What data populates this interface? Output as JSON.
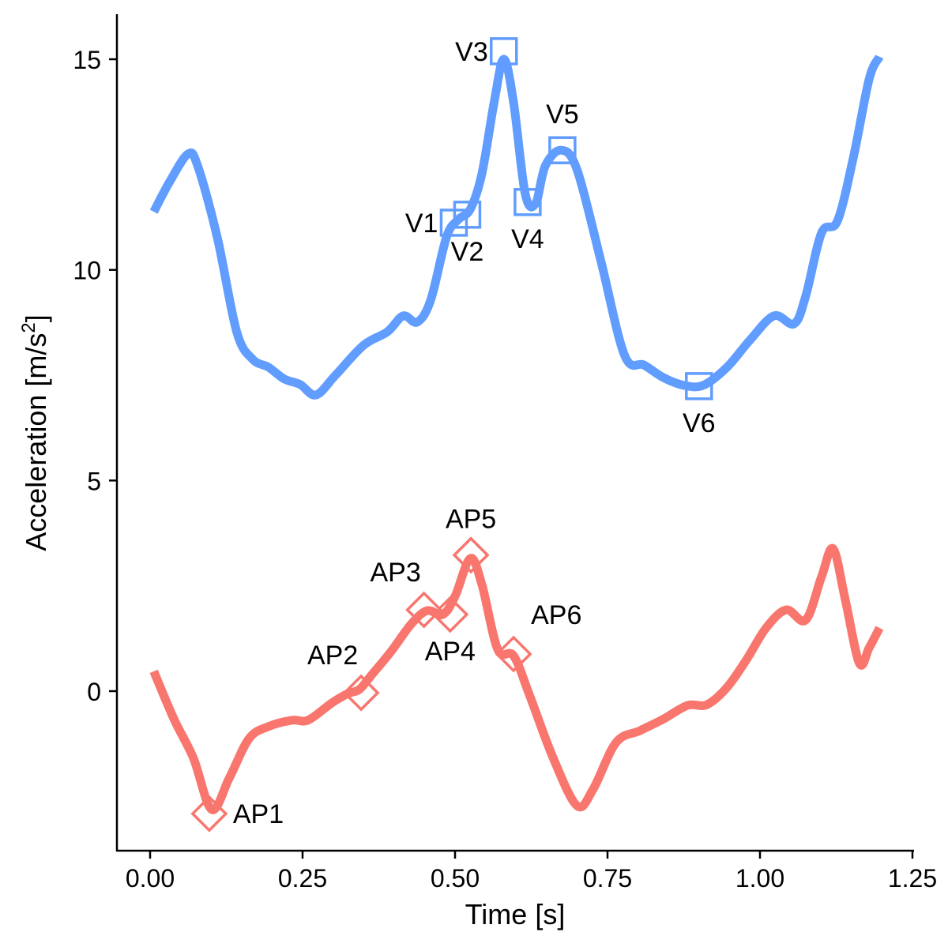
{
  "chart_data": {
    "type": "line",
    "title": "",
    "xlabel": "Time [s]",
    "ylabel": "Acceleration [m/s",
    "ylabel_superscript": "2",
    "ylabel_suffix": "]",
    "xlim": [
      -0.055,
      1.255
    ],
    "ylim": [
      -3.8,
      16.1
    ],
    "xticks": [
      0.0,
      0.25,
      0.5,
      0.75,
      1.0,
      1.25
    ],
    "xtick_labels": [
      "0.00",
      "0.25",
      "0.50",
      "0.75",
      "1.00",
      "1.25"
    ],
    "yticks": [
      0,
      5,
      10,
      15
    ],
    "ytick_labels": [
      "0",
      "5",
      "10",
      "15"
    ],
    "grid": false,
    "series": [
      {
        "name": "V",
        "color": "#619CFF",
        "marker": "square",
        "x": [
          0.006,
          0.032,
          0.062,
          0.078,
          0.11,
          0.142,
          0.168,
          0.194,
          0.22,
          0.246,
          0.272,
          0.304,
          0.35,
          0.389,
          0.415,
          0.438,
          0.46,
          0.486,
          0.505,
          0.525,
          0.544,
          0.564,
          0.58,
          0.596,
          0.615,
          0.632,
          0.648,
          0.674,
          0.7,
          0.739,
          0.778,
          0.81,
          0.842,
          0.875,
          0.907,
          0.946,
          0.984,
          1.023,
          1.056,
          1.075,
          1.101,
          1.127,
          1.153,
          1.179,
          1.196
        ],
        "y": [
          11.38,
          12.09,
          12.75,
          12.47,
          10.78,
          8.53,
          7.88,
          7.69,
          7.41,
          7.28,
          7.03,
          7.5,
          8.21,
          8.53,
          8.91,
          8.76,
          9.28,
          10.78,
          11.19,
          11.44,
          12.28,
          13.97,
          15.0,
          13.97,
          11.81,
          11.57,
          12.47,
          12.84,
          12.38,
          10.22,
          7.97,
          7.74,
          7.44,
          7.26,
          7.26,
          7.69,
          8.34,
          8.91,
          8.72,
          9.38,
          10.88,
          11.16,
          12.66,
          14.53,
          15.06
        ],
        "points": [
          {
            "label": "V1",
            "x": 0.498,
            "y": 11.12,
            "pos": "left"
          },
          {
            "label": "V2",
            "x": 0.52,
            "y": 11.31,
            "pos": "below"
          },
          {
            "label": "V3",
            "x": 0.58,
            "y": 15.19,
            "pos": "left"
          },
          {
            "label": "V4",
            "x": 0.619,
            "y": 11.61,
            "pos": "below"
          },
          {
            "label": "V5",
            "x": 0.676,
            "y": 12.84,
            "pos": "above"
          },
          {
            "label": "V6",
            "x": 0.9,
            "y": 7.24,
            "pos": "below"
          }
        ]
      },
      {
        "name": "AP",
        "color": "#F8766D",
        "marker": "diamond",
        "x": [
          0.006,
          0.039,
          0.071,
          0.101,
          0.13,
          0.162,
          0.194,
          0.233,
          0.259,
          0.298,
          0.324,
          0.343,
          0.363,
          0.395,
          0.428,
          0.454,
          0.48,
          0.5,
          0.525,
          0.544,
          0.57,
          0.596,
          0.622,
          0.661,
          0.7,
          0.726,
          0.764,
          0.803,
          0.842,
          0.881,
          0.913,
          0.946,
          0.978,
          1.01,
          1.043,
          1.075,
          1.101,
          1.12,
          1.14,
          1.163,
          1.179,
          1.196
        ],
        "y": [
          0.47,
          -0.66,
          -1.59,
          -2.81,
          -2.06,
          -1.13,
          -0.84,
          -0.69,
          -0.69,
          -0.28,
          -0.06,
          0.04,
          0.38,
          0.94,
          1.59,
          1.91,
          1.82,
          2.25,
          3.15,
          2.53,
          0.99,
          0.84,
          -0.09,
          -1.59,
          -2.72,
          -2.34,
          -1.22,
          -0.94,
          -0.66,
          -0.34,
          -0.32,
          0.09,
          0.75,
          1.5,
          1.93,
          1.69,
          2.72,
          3.38,
          2.16,
          0.66,
          1.03,
          1.5
        ],
        "points": [
          {
            "label": "AP1",
            "x": 0.097,
            "y": -2.91,
            "pos": "right"
          },
          {
            "label": "AP2",
            "x": 0.346,
            "y": -0.04,
            "pos": "above-left"
          },
          {
            "label": "AP3",
            "x": 0.449,
            "y": 1.93,
            "pos": "above-left"
          },
          {
            "label": "AP4",
            "x": 0.492,
            "y": 1.82,
            "pos": "below"
          },
          {
            "label": "AP5",
            "x": 0.526,
            "y": 3.23,
            "pos": "above"
          },
          {
            "label": "AP6",
            "x": 0.596,
            "y": 0.88,
            "pos": "above-right"
          }
        ]
      }
    ]
  }
}
